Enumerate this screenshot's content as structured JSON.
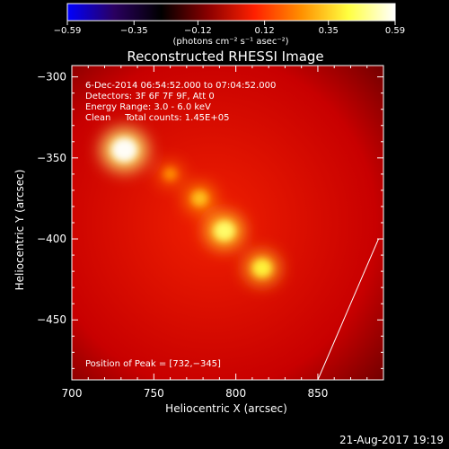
{
  "chart_data": {
    "type": "heatmap",
    "title": "Reconstructed RHESSI Image",
    "xlabel": "Heliocentric X (arcsec)",
    "ylabel": "Heliocentric Y (arcsec)",
    "xlim": [
      700,
      890
    ],
    "ylim": [
      -487,
      -293
    ],
    "x_ticks": [
      700,
      750,
      800,
      850
    ],
    "y_ticks": [
      -300,
      -350,
      -400,
      -450
    ],
    "x_tick_labels": [
      "700",
      "750",
      "800",
      "850"
    ],
    "y_tick_labels": [
      "−300",
      "−350",
      "−400",
      "−450"
    ],
    "colorbar": {
      "min": -0.59,
      "max": 0.59,
      "ticks": [
        -0.59,
        -0.35,
        -0.12,
        0.12,
        0.35,
        0.59
      ],
      "tick_labels": [
        "−0.59",
        "−0.35",
        "−0.12",
        "0.12",
        "0.35",
        "0.59"
      ],
      "unit_label": "(photons cm⁻² s⁻¹ asec⁻²)",
      "colors": [
        "#0000ff",
        "#2a0060",
        "#000000",
        "#8a0000",
        "#ff2000",
        "#ff9000",
        "#ffff40",
        "#ffffff"
      ]
    },
    "background_value": 0.14,
    "sources": [
      {
        "x": 732,
        "y": -345,
        "value": 0.59
      },
      {
        "x": 793,
        "y": -395,
        "value": 0.46
      },
      {
        "x": 816,
        "y": -418,
        "value": 0.41
      },
      {
        "x": 778,
        "y": -375,
        "value": 0.33
      },
      {
        "x": 760,
        "y": -360,
        "value": 0.25
      }
    ],
    "annotations": [
      "6-Dec-2014 06:54:52.000 to 07:04:52.000",
      "Detectors: 3F 6F 7F 9F, Att 0",
      "Energy Range: 3.0 - 6.0 keV",
      "Clean     Total counts: 1.45E+05"
    ],
    "peak_label": "Position of Peak = [732,−345]",
    "limb_line": [
      {
        "x": 887,
        "y": -400
      },
      {
        "x": 850,
        "y": -487
      }
    ]
  },
  "footer": {
    "timestamp": "21-Aug-2017 19:19"
  }
}
